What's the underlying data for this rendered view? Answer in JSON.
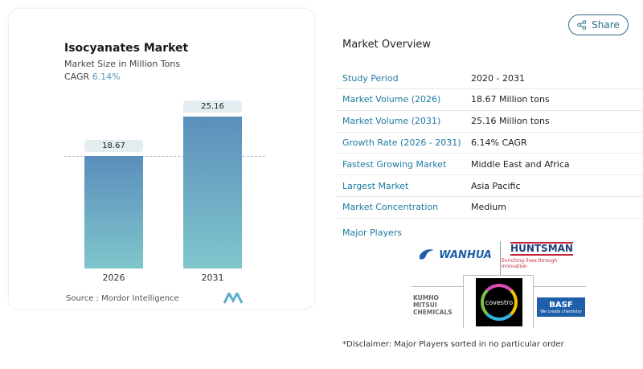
{
  "header": {
    "share_label": "Share"
  },
  "chart_card": {
    "title": "Isocyanates Market",
    "subtitle": "Market Size in Million Tons",
    "cagr_label": "CAGR",
    "cagr_value": "6.14%",
    "source": "Source :  Mordor Intelligence"
  },
  "chart_data": {
    "type": "bar",
    "categories": [
      "2026",
      "2031"
    ],
    "values": [
      18.67,
      25.16
    ],
    "data_labels": [
      "18.67",
      "25.16"
    ],
    "colors": {
      "bar_top": "#5b8ebb",
      "bar_bottom": "#7fc6cc"
    }
  },
  "overview": {
    "title": "Market Overview",
    "rows": [
      {
        "label": "Study Period",
        "value": "2020 - 2031"
      },
      {
        "label": "Market Volume (2026)",
        "value": "18.67 Million tons"
      },
      {
        "label": "Market Volume (2031)",
        "value": "25.16 Million tons"
      },
      {
        "label": "Growth Rate (2026 - 2031)",
        "value": "6.14% CAGR"
      },
      {
        "label": "Fastest Growing Market",
        "value": "Middle East and Africa"
      },
      {
        "label": "Largest Market",
        "value": "Asia Pacific"
      },
      {
        "label": "Market Concentration",
        "value": "Medium"
      }
    ],
    "major_players_label": "Major Players",
    "players": {
      "wanhua": "WANHUA",
      "huntsman": "HUNTSMAN",
      "huntsman_tag": "Enriching lives through innovation",
      "kumho_1": "KUMHO MITSUI",
      "kumho_2": "CHEMICALS",
      "covestro": "covestro",
      "basf": "BASF",
      "basf_tag": "We create chemistry"
    },
    "disclaimer": "*Disclaimer: Major Players sorted in no particular order"
  }
}
